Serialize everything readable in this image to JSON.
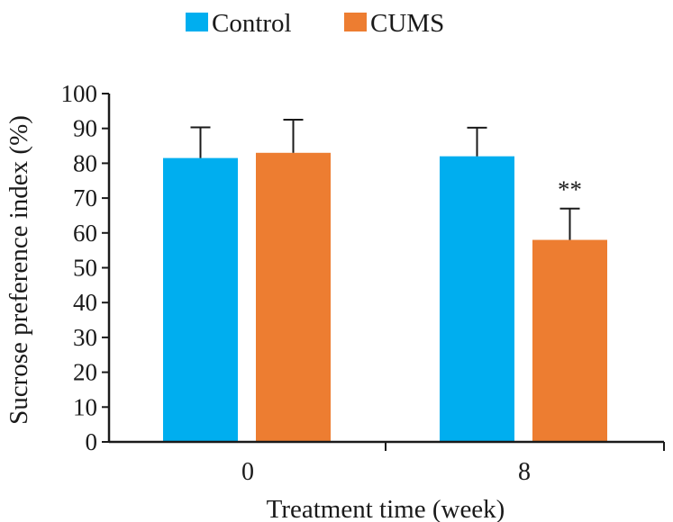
{
  "chart_data": {
    "type": "bar",
    "categories": [
      "0",
      "8"
    ],
    "series": [
      {
        "name": "Control",
        "color": "#00aeef",
        "values": [
          81.5,
          82
        ],
        "errors": [
          8.8,
          8.2
        ]
      },
      {
        "name": "CUMS",
        "color": "#ed7d31",
        "values": [
          83,
          58
        ],
        "errors": [
          9.5,
          9
        ]
      }
    ],
    "xlabel": "Treatment time (week)",
    "ylabel": "Sucrose preference index (%)",
    "ylim": [
      0,
      100
    ],
    "yticks": [
      "0",
      "10",
      "20",
      "30",
      "40",
      "50",
      "60",
      "70",
      "80",
      "90",
      "100"
    ],
    "legend_position": "top-center",
    "grid": false,
    "annotations": [
      {
        "series": 1,
        "category": 1,
        "text": "**"
      }
    ]
  }
}
